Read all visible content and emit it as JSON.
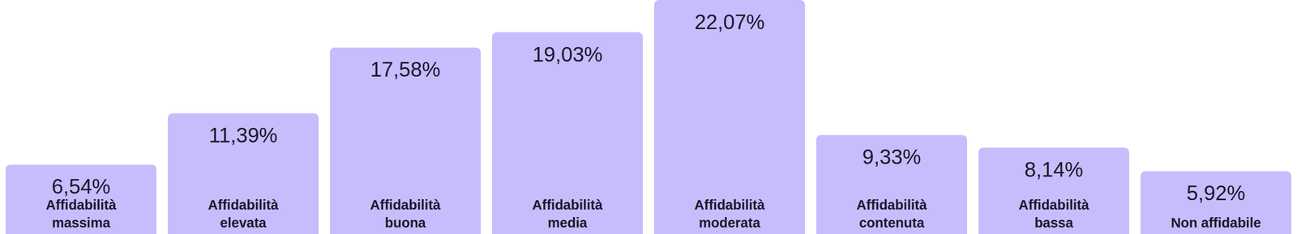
{
  "chart_data": {
    "type": "bar",
    "categories": [
      "Affidabilità massima",
      "Affidabilità elevata",
      "Affidabilità buona",
      "Affidabilità media",
      "Affidabilità moderata",
      "Affidabilità contenuta",
      "Affidabilità bassa",
      "Non affidabile"
    ],
    "values": [
      6.54,
      11.39,
      17.58,
      19.03,
      22.07,
      9.33,
      8.14,
      5.92
    ],
    "value_labels": [
      "6,54%",
      "11,39%",
      "17,58%",
      "19,03%",
      "22,07%",
      "9,33%",
      "8,14%",
      "5,92%"
    ],
    "color": "#c7bdfc",
    "data_labels": true
  }
}
